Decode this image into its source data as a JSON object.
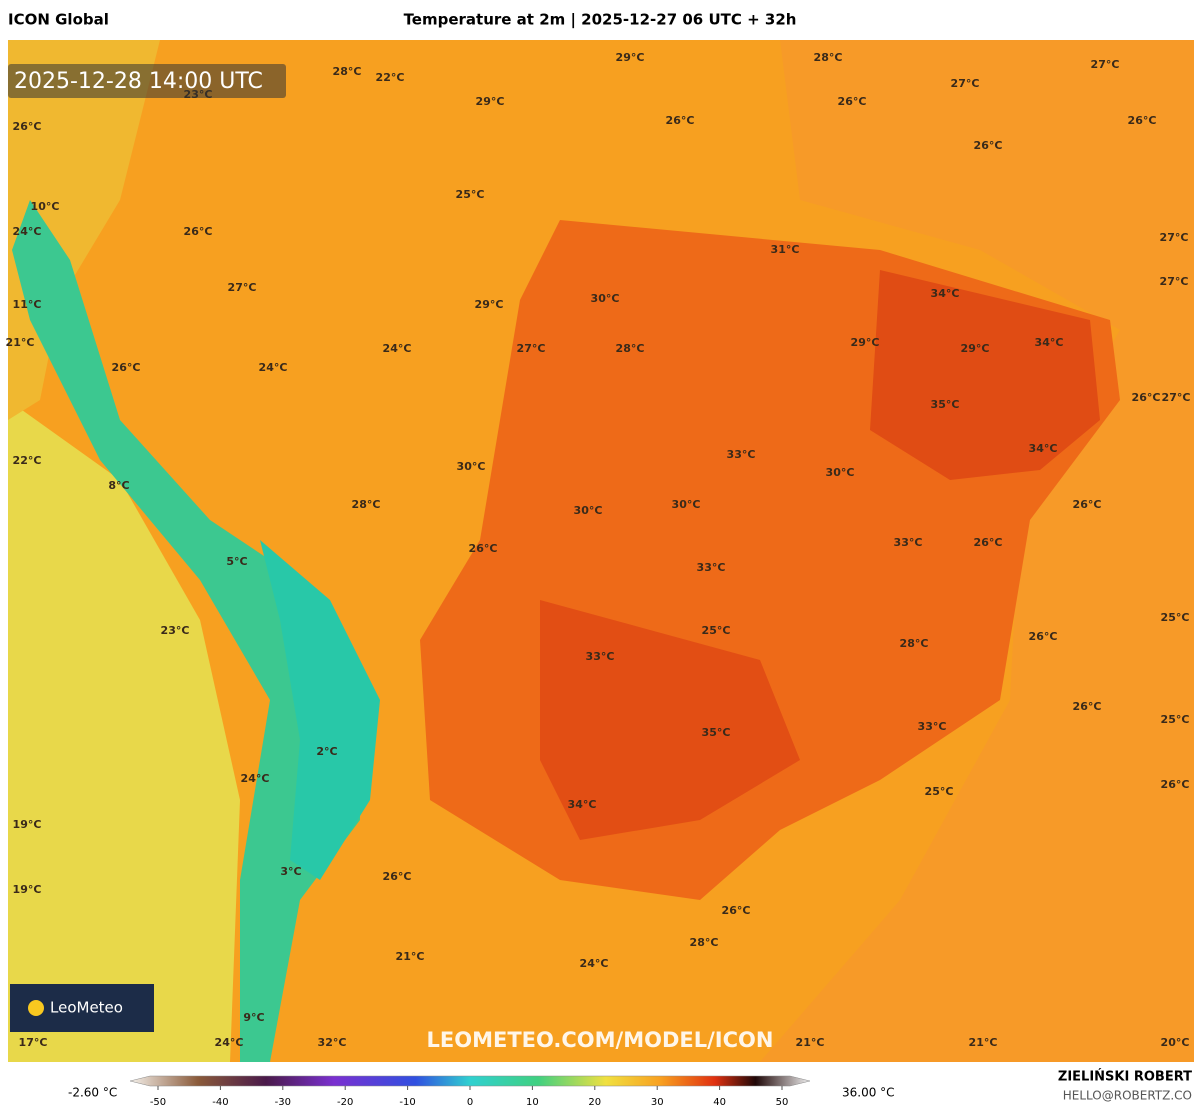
{
  "header": {
    "left": "ICON Global",
    "title": "Temperature at 2m | 2025-12-27 06 UTC + 32h"
  },
  "timestamp": "2025-12-28 14:00 UTC",
  "watermark": "LEOMETEO.COM/MODEL/ICON",
  "logo": "LeoMeteo",
  "credit": {
    "name": "ZIELIŃSKI ROBERT",
    "email": "HELLO@ROBERTZ.CO"
  },
  "colorbar": {
    "min_label": "-2.60 °C",
    "max_label": "36.00 °C",
    "ticks": [
      -50,
      -40,
      -30,
      -20,
      -10,
      0,
      10,
      20,
      30,
      40,
      50
    ]
  },
  "map_labels": [
    "28°C",
    "22°C",
    "29°C",
    "28°C",
    "27°C",
    "23°C",
    "29°C",
    "27°C",
    "26°C",
    "26°C",
    "26°C",
    "26°C",
    "26°C",
    "25°C",
    "10°C",
    "24°C",
    "26°C",
    "27°C",
    "31°C",
    "27°C",
    "27°C",
    "30°C",
    "29°C",
    "34°C",
    "11°C",
    "21°C",
    "24°C",
    "27°C",
    "28°C",
    "29°C",
    "29°C",
    "34°C",
    "26°C",
    "24°C",
    "35°C",
    "26°C",
    "27°C",
    "34°C",
    "33°C",
    "22°C",
    "30°C",
    "30°C",
    "8°C",
    "28°C",
    "30°C",
    "30°C",
    "26°C",
    "33°C",
    "26°C",
    "26°C",
    "5°C",
    "33°C",
    "25°C",
    "23°C",
    "25°C",
    "26°C",
    "28°C",
    "33°C",
    "26°C",
    "25°C",
    "35°C",
    "33°C",
    "2°C",
    "24°C",
    "26°C",
    "25°C",
    "34°C",
    "19°C",
    "3°C",
    "26°C",
    "19°C",
    "26°C",
    "28°C",
    "21°C",
    "24°C",
    "9°C",
    "17°C",
    "24°C",
    "32°C",
    "21°C",
    "21°C",
    "20°C"
  ]
}
